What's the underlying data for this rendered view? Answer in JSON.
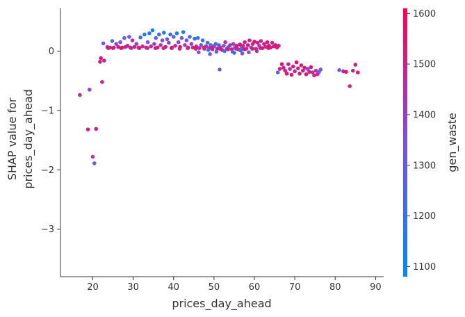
{
  "chart_data": {
    "type": "scatter",
    "xlabel": "prices_day_ahead",
    "ylabel_lines": [
      "SHAP value for",
      "prices_day_ahead"
    ],
    "xlim": [
      12,
      92
    ],
    "ylim": [
      -3.8,
      0.72
    ],
    "x_ticks": [
      20,
      30,
      40,
      50,
      60,
      70,
      80,
      90
    ],
    "y_ticks": [
      0,
      -1,
      -2,
      -3
    ],
    "x_tick_labels": [
      "20",
      "30",
      "40",
      "50",
      "60",
      "70",
      "80",
      "90"
    ],
    "y_tick_labels": [
      "0",
      "−1",
      "−2",
      "−3"
    ],
    "colorbar": {
      "label": "gen_waste",
      "min": 1080,
      "max": 1610,
      "ticks": [
        1100,
        1200,
        1300,
        1400,
        1500,
        1600
      ],
      "tick_labels": [
        "1100",
        "1200",
        "1300",
        "1400",
        "1500",
        "1600"
      ],
      "color_low": "#008afb",
      "color_high": "#ff0052"
    },
    "points": [
      [
        16.8,
        -0.74,
        1480
      ],
      [
        18.8,
        -1.32,
        1500
      ],
      [
        19.2,
        -0.65,
        1400
      ],
      [
        20.0,
        -1.78,
        1450
      ],
      [
        20.4,
        -1.89,
        1300
      ],
      [
        20.8,
        -1.31,
        1520
      ],
      [
        21.8,
        -0.18,
        1500
      ],
      [
        22.0,
        -0.12,
        1550
      ],
      [
        22.3,
        -0.52,
        1500
      ],
      [
        22.6,
        0.13,
        1350
      ],
      [
        22.8,
        -0.16,
        1500
      ],
      [
        23.6,
        0.07,
        1450
      ],
      [
        23.8,
        0.05,
        1520
      ],
      [
        24.3,
        0.06,
        1500
      ],
      [
        24.8,
        0.17,
        1200
      ],
      [
        25.2,
        0.06,
        1550
      ],
      [
        25.8,
        0.12,
        1400
      ],
      [
        26.3,
        0.07,
        1500
      ],
      [
        26.8,
        0.15,
        1350
      ],
      [
        27.3,
        0.06,
        1520
      ],
      [
        27.8,
        0.22,
        1300
      ],
      [
        28.1,
        0.07,
        1480
      ],
      [
        28.6,
        0.09,
        1500
      ],
      [
        29.0,
        0.24,
        1350
      ],
      [
        29.3,
        0.06,
        1550
      ],
      [
        29.8,
        0.18,
        1450
      ],
      [
        30.3,
        0.07,
        1500
      ],
      [
        30.8,
        0.12,
        1400
      ],
      [
        31.3,
        0.06,
        1520
      ],
      [
        31.8,
        0.23,
        1250
      ],
      [
        32.3,
        0.08,
        1480
      ],
      [
        32.8,
        0.28,
        1150
      ],
      [
        33.2,
        0.06,
        1500
      ],
      [
        33.6,
        0.15,
        1350
      ],
      [
        34.0,
        0.3,
        1180
      ],
      [
        34.4,
        0.08,
        1500
      ],
      [
        34.8,
        0.35,
        1100
      ],
      [
        35.2,
        0.12,
        1400
      ],
      [
        35.6,
        0.22,
        1300
      ],
      [
        36.0,
        0.06,
        1550
      ],
      [
        36.4,
        0.28,
        1250
      ],
      [
        36.8,
        0.1,
        1450
      ],
      [
        37.2,
        0.18,
        1350
      ],
      [
        37.6,
        0.31,
        1150
      ],
      [
        38.0,
        0.07,
        1520
      ],
      [
        38.4,
        0.2,
        1300
      ],
      [
        38.8,
        0.14,
        1400
      ],
      [
        39.2,
        0.28,
        1200
      ],
      [
        39.6,
        0.06,
        1500
      ],
      [
        40.0,
        0.24,
        1280
      ],
      [
        40.4,
        0.09,
        1480
      ],
      [
        40.8,
        0.3,
        1150
      ],
      [
        41.2,
        0.15,
        1380
      ],
      [
        41.6,
        0.07,
        1550
      ],
      [
        42.0,
        0.22,
        1300
      ],
      [
        42.4,
        0.32,
        1120
      ],
      [
        42.8,
        0.1,
        1450
      ],
      [
        43.2,
        0.18,
        1350
      ],
      [
        43.6,
        0.06,
        1500
      ],
      [
        44.0,
        0.24,
        1250
      ],
      [
        44.4,
        0.12,
        1420
      ],
      [
        44.8,
        0.06,
        1520
      ],
      [
        45.2,
        0.21,
        1220
      ],
      [
        45.6,
        0.08,
        1480
      ],
      [
        46.0,
        0.22,
        1180
      ],
      [
        46.4,
        0.05,
        1500
      ],
      [
        46.8,
        0.1,
        1350
      ],
      [
        47.2,
        0.18,
        1150
      ],
      [
        47.6,
        0.04,
        1520
      ],
      [
        48.0,
        0.08,
        1450
      ],
      [
        48.4,
        0.14,
        1200
      ],
      [
        48.8,
        0.05,
        1500
      ],
      [
        49.2,
        0.1,
        1300
      ],
      [
        49.6,
        0.03,
        1550
      ],
      [
        50.0,
        0.08,
        1420
      ],
      [
        50.4,
        0.12,
        1180
      ],
      [
        50.8,
        0.04,
        1500
      ],
      [
        51.2,
        0.1,
        1250
      ],
      [
        51.6,
        0.06,
        1480
      ],
      [
        52.0,
        0.02,
        1520
      ],
      [
        52.4,
        0.09,
        1350
      ],
      [
        52.8,
        0.15,
        1450
      ],
      [
        53.2,
        0.04,
        1550
      ],
      [
        53.6,
        0.07,
        1200
      ],
      [
        54.0,
        0.1,
        1480
      ],
      [
        54.4,
        0.03,
        1500
      ],
      [
        54.8,
        0.12,
        1400
      ],
      [
        55.2,
        0.06,
        1250
      ],
      [
        55.6,
        0.09,
        1520
      ],
      [
        56.0,
        0.03,
        1480
      ],
      [
        56.4,
        0.11,
        1550
      ],
      [
        56.8,
        0.05,
        1300
      ],
      [
        57.2,
        0.09,
        1500
      ],
      [
        57.6,
        0.15,
        1520
      ],
      [
        58.0,
        0.04,
        1450
      ],
      [
        58.4,
        0.1,
        1550
      ],
      [
        58.8,
        0.18,
        1500
      ],
      [
        59.2,
        0.06,
        1400
      ],
      [
        59.6,
        0.12,
        1520
      ],
      [
        60.0,
        0.16,
        1550
      ],
      [
        60.4,
        0.04,
        1480
      ],
      [
        60.8,
        0.14,
        1500
      ],
      [
        61.2,
        0.09,
        1450
      ],
      [
        61.6,
        0.17,
        1520
      ],
      [
        62.0,
        0.05,
        1550
      ],
      [
        62.4,
        0.12,
        1500
      ],
      [
        62.8,
        0.07,
        1480
      ],
      [
        63.2,
        0.15,
        1520
      ],
      [
        63.6,
        0.09,
        1550
      ],
      [
        64.0,
        0.06,
        1500
      ],
      [
        64.4,
        0.14,
        1480
      ],
      [
        64.8,
        0.08,
        1520
      ],
      [
        65.2,
        0.1,
        1550
      ],
      [
        65.6,
        0.06,
        1500
      ],
      [
        66.0,
        0.09,
        1520
      ],
      [
        25.0,
        0.05,
        1500
      ],
      [
        27.0,
        0.05,
        1550
      ],
      [
        29.5,
        0.05,
        1480
      ],
      [
        31.5,
        0.05,
        1550
      ],
      [
        33.5,
        0.05,
        1480
      ],
      [
        35.5,
        0.05,
        1520
      ],
      [
        37.5,
        0.05,
        1500
      ],
      [
        39.5,
        0.05,
        1550
      ],
      [
        41.5,
        0.04,
        1480
      ],
      [
        43.5,
        0.05,
        1520
      ],
      [
        45.5,
        0.04,
        1550
      ],
      [
        47.5,
        0.06,
        1480
      ],
      [
        49.5,
        0.05,
        1500
      ],
      [
        51.5,
        0.04,
        1480
      ],
      [
        53.5,
        0.03,
        1520
      ],
      [
        55.5,
        0.04,
        1500
      ],
      [
        57.5,
        0.03,
        1550
      ],
      [
        59.5,
        0.04,
        1520
      ],
      [
        61.5,
        0.05,
        1500
      ],
      [
        63.5,
        0.05,
        1550
      ],
      [
        46.2,
        -0.02,
        1350
      ],
      [
        48.6,
        0.02,
        1150
      ],
      [
        50.6,
        -0.01,
        1250
      ],
      [
        52.6,
        0.0,
        1200
      ],
      [
        54.6,
        -0.01,
        1300
      ],
      [
        56.6,
        0.01,
        1180
      ],
      [
        58.6,
        -0.02,
        1350
      ],
      [
        60.6,
        0.0,
        1450
      ],
      [
        49.0,
        -0.05,
        1300
      ],
      [
        55.0,
        -0.03,
        1200
      ],
      [
        57.0,
        -0.04,
        1350
      ],
      [
        51.4,
        -0.31,
        1300
      ],
      [
        65.8,
        -0.36,
        1250
      ],
      [
        66.3,
        -0.3,
        1500
      ],
      [
        66.8,
        -0.22,
        1550
      ],
      [
        67.2,
        -0.28,
        1520
      ],
      [
        67.6,
        -0.33,
        1500
      ],
      [
        68.0,
        -0.38,
        1550
      ],
      [
        68.4,
        -0.22,
        1500
      ],
      [
        68.8,
        -0.3,
        1480
      ],
      [
        69.2,
        -0.4,
        1550
      ],
      [
        69.6,
        -0.26,
        1520
      ],
      [
        70.0,
        -0.34,
        1500
      ],
      [
        70.4,
        -0.19,
        1550
      ],
      [
        70.8,
        -0.29,
        1480
      ],
      [
        71.2,
        -0.38,
        1520
      ],
      [
        71.6,
        -0.24,
        1550
      ],
      [
        72.0,
        -0.33,
        1500
      ],
      [
        72.4,
        -0.28,
        1520
      ],
      [
        72.8,
        -0.39,
        1550
      ],
      [
        73.2,
        -0.3,
        1400
      ],
      [
        73.6,
        -0.35,
        1500
      ],
      [
        74.0,
        -0.27,
        1550
      ],
      [
        74.4,
        -0.36,
        1480
      ],
      [
        74.8,
        -0.41,
        1520
      ],
      [
        75.2,
        -0.33,
        1450
      ],
      [
        75.6,
        -0.39,
        1500
      ],
      [
        76.0,
        -0.35,
        1350
      ],
      [
        76.4,
        -0.31,
        1300
      ],
      [
        81.0,
        -0.32,
        1300
      ],
      [
        82.0,
        -0.34,
        1500
      ],
      [
        82.7,
        -0.35,
        1550
      ],
      [
        83.6,
        -0.59,
        1500
      ],
      [
        84.4,
        -0.33,
        1520
      ],
      [
        85.0,
        -0.23,
        1500
      ],
      [
        85.6,
        -0.36,
        1550
      ]
    ]
  }
}
